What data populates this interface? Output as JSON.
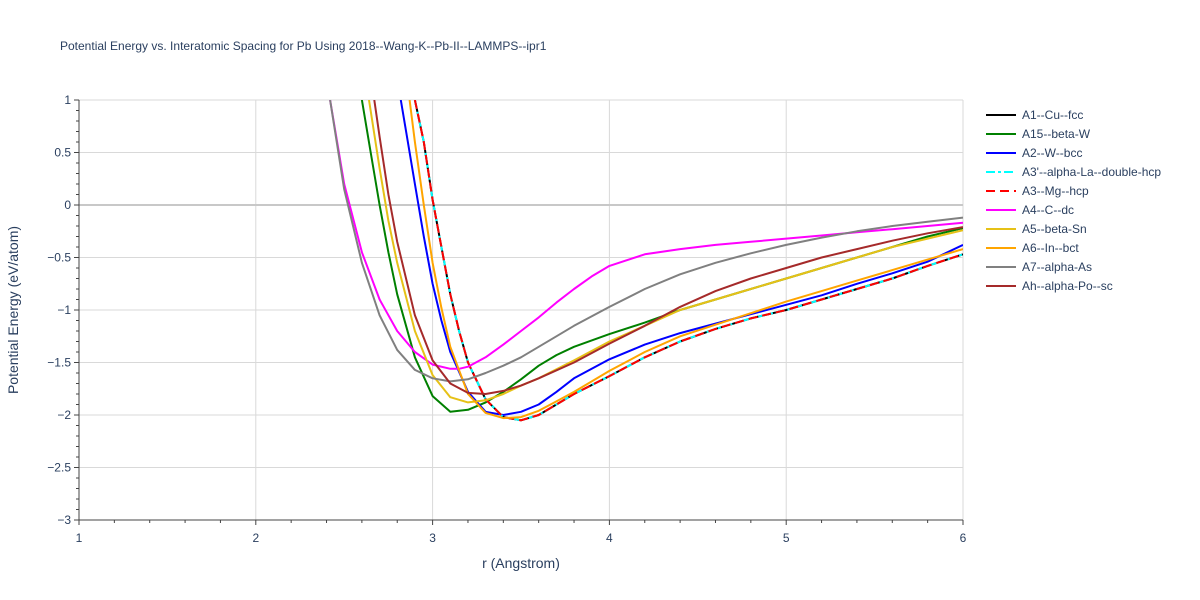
{
  "chart_data": {
    "type": "line",
    "title": "Potential Energy vs. Interatomic Spacing for Pb Using 2018--Wang-K--Pb-II--LAMMPS--ipr1",
    "xlabel": "r (Angstrom)",
    "ylabel": "Potential Energy (eV/atom)",
    "xlim": [
      1,
      6
    ],
    "ylim": [
      -3,
      1
    ],
    "x_ticks": [
      1,
      2,
      3,
      4,
      5,
      6
    ],
    "y_ticks": [
      1,
      0.5,
      0,
      -0.5,
      -1,
      -1.5,
      -2,
      -2.5,
      -3
    ],
    "x_tick_labels": [
      "1",
      "2",
      "3",
      "4",
      "5",
      "6"
    ],
    "y_tick_labels": [
      "1",
      "0.5",
      "0",
      "−0.5",
      "−1",
      "−1.5",
      "−2",
      "−2.5",
      "−3"
    ],
    "grid": true,
    "legend_position": "right",
    "series": [
      {
        "name": "A1--Cu--fcc",
        "color": "#000000",
        "dash": "solid",
        "x": [
          2.9,
          2.95,
          3.0,
          3.05,
          3.1,
          3.15,
          3.2,
          3.3,
          3.4,
          3.5,
          3.6,
          3.7,
          3.8,
          4.0,
          4.2,
          4.4,
          4.6,
          4.8,
          5.0,
          5.2,
          5.4,
          5.6,
          5.8,
          6.0
        ],
        "y": [
          1.0,
          0.6,
          0.05,
          -0.4,
          -0.85,
          -1.2,
          -1.5,
          -1.85,
          -2.02,
          -2.05,
          -2.0,
          -1.9,
          -1.8,
          -1.63,
          -1.45,
          -1.3,
          -1.18,
          -1.08,
          -1.0,
          -0.9,
          -0.8,
          -0.7,
          -0.58,
          -0.47
        ]
      },
      {
        "name": "A15--beta-W",
        "color": "#008000",
        "dash": "solid",
        "x": [
          2.6,
          2.65,
          2.7,
          2.75,
          2.8,
          2.9,
          3.0,
          3.1,
          3.2,
          3.3,
          3.4,
          3.5,
          3.6,
          3.7,
          3.8,
          4.0,
          4.2,
          4.4,
          4.6,
          4.8,
          5.0,
          5.2,
          5.4,
          5.6,
          5.8,
          6.0
        ],
        "y": [
          1.0,
          0.5,
          0.0,
          -0.45,
          -0.85,
          -1.45,
          -1.82,
          -1.97,
          -1.95,
          -1.88,
          -1.78,
          -1.66,
          -1.53,
          -1.43,
          -1.35,
          -1.23,
          -1.12,
          -1.0,
          -0.9,
          -0.8,
          -0.7,
          -0.6,
          -0.5,
          -0.4,
          -0.3,
          -0.22
        ]
      },
      {
        "name": "A2--W--bcc",
        "color": "#0000ff",
        "dash": "solid",
        "x": [
          2.82,
          2.85,
          2.9,
          2.95,
          3.0,
          3.05,
          3.1,
          3.2,
          3.3,
          3.4,
          3.5,
          3.6,
          3.7,
          3.8,
          4.0,
          4.2,
          4.4,
          4.6,
          4.8,
          5.0,
          5.2,
          5.4,
          5.6,
          5.8,
          6.0
        ],
        "y": [
          1.0,
          0.7,
          0.2,
          -0.3,
          -0.75,
          -1.1,
          -1.4,
          -1.78,
          -1.97,
          -2.0,
          -1.97,
          -1.9,
          -1.78,
          -1.65,
          -1.47,
          -1.33,
          -1.22,
          -1.13,
          -1.04,
          -0.95,
          -0.86,
          -0.75,
          -0.65,
          -0.54,
          -0.38
        ]
      },
      {
        "name": "A3'--alpha-La--double-hcp",
        "color": "#00ffff",
        "dash": "dashdot",
        "x": [
          2.9,
          2.95,
          3.0,
          3.05,
          3.1,
          3.15,
          3.2,
          3.3,
          3.4,
          3.5,
          3.6,
          3.7,
          3.8,
          4.0,
          4.2,
          4.4,
          4.6,
          4.8,
          5.0,
          5.2,
          5.4,
          5.6,
          5.8,
          6.0
        ],
        "y": [
          1.0,
          0.6,
          0.05,
          -0.4,
          -0.85,
          -1.2,
          -1.5,
          -1.85,
          -2.02,
          -2.05,
          -2.0,
          -1.9,
          -1.8,
          -1.63,
          -1.45,
          -1.3,
          -1.18,
          -1.08,
          -1.0,
          -0.9,
          -0.8,
          -0.7,
          -0.58,
          -0.47
        ]
      },
      {
        "name": "A3--Mg--hcp",
        "color": "#ff0000",
        "dash": "dash",
        "x": [
          2.9,
          2.95,
          3.0,
          3.05,
          3.1,
          3.15,
          3.2,
          3.3,
          3.4,
          3.5,
          3.6,
          3.7,
          3.8,
          4.0,
          4.2,
          4.4,
          4.6,
          4.8,
          5.0,
          5.2,
          5.4,
          5.6,
          5.8,
          6.0
        ],
        "y": [
          1.0,
          0.6,
          0.05,
          -0.4,
          -0.85,
          -1.2,
          -1.5,
          -1.85,
          -2.02,
          -2.05,
          -2.0,
          -1.9,
          -1.8,
          -1.63,
          -1.45,
          -1.3,
          -1.18,
          -1.08,
          -1.0,
          -0.9,
          -0.8,
          -0.7,
          -0.58,
          -0.47
        ]
      },
      {
        "name": "A4--C--dc",
        "color": "#ff00ff",
        "dash": "solid",
        "x": [
          2.42,
          2.5,
          2.6,
          2.7,
          2.8,
          2.9,
          3.0,
          3.1,
          3.15,
          3.2,
          3.3,
          3.4,
          3.5,
          3.6,
          3.7,
          3.8,
          3.9,
          4.0,
          4.2,
          4.4,
          4.6,
          4.8,
          5.0,
          5.2,
          5.4,
          5.6,
          5.8,
          6.0
        ],
        "y": [
          1.0,
          0.2,
          -0.45,
          -0.9,
          -1.2,
          -1.4,
          -1.52,
          -1.56,
          -1.56,
          -1.54,
          -1.45,
          -1.33,
          -1.2,
          -1.07,
          -0.93,
          -0.8,
          -0.68,
          -0.58,
          -0.47,
          -0.42,
          -0.38,
          -0.35,
          -0.32,
          -0.29,
          -0.26,
          -0.23,
          -0.2,
          -0.17
        ]
      },
      {
        "name": "A5--beta-Sn",
        "color": "#e6c117",
        "dash": "solid",
        "x": [
          2.64,
          2.7,
          2.75,
          2.8,
          2.9,
          3.0,
          3.1,
          3.2,
          3.3,
          3.4,
          3.5,
          3.6,
          3.8,
          4.0,
          4.2,
          4.4,
          4.6,
          4.8,
          5.0,
          5.2,
          5.4,
          5.6,
          5.8,
          6.0
        ],
        "y": [
          1.0,
          0.35,
          -0.15,
          -0.55,
          -1.2,
          -1.62,
          -1.83,
          -1.88,
          -1.86,
          -1.8,
          -1.72,
          -1.65,
          -1.48,
          -1.3,
          -1.15,
          -1.0,
          -0.9,
          -0.8,
          -0.7,
          -0.6,
          -0.5,
          -0.4,
          -0.32,
          -0.24
        ]
      },
      {
        "name": "A6--In--bct",
        "color": "#ffa500",
        "dash": "solid",
        "x": [
          2.87,
          2.9,
          2.95,
          3.0,
          3.05,
          3.1,
          3.2,
          3.3,
          3.4,
          3.5,
          3.6,
          3.7,
          3.8,
          4.0,
          4.2,
          4.4,
          4.6,
          4.8,
          5.0,
          5.2,
          5.4,
          5.6,
          5.8,
          6.0
        ],
        "y": [
          1.0,
          0.6,
          0.0,
          -0.55,
          -0.98,
          -1.35,
          -1.8,
          -1.98,
          -2.03,
          -2.02,
          -1.96,
          -1.87,
          -1.78,
          -1.58,
          -1.4,
          -1.25,
          -1.14,
          -1.03,
          -0.92,
          -0.82,
          -0.72,
          -0.62,
          -0.52,
          -0.42
        ]
      },
      {
        "name": "A7--alpha-As",
        "color": "#808080",
        "dash": "solid",
        "x": [
          2.42,
          2.5,
          2.6,
          2.7,
          2.8,
          2.9,
          3.0,
          3.1,
          3.2,
          3.3,
          3.4,
          3.5,
          3.6,
          3.7,
          3.8,
          4.0,
          4.2,
          4.4,
          4.6,
          4.8,
          5.0,
          5.2,
          5.4,
          5.6,
          5.8,
          6.0
        ],
        "y": [
          1.0,
          0.15,
          -0.55,
          -1.05,
          -1.38,
          -1.57,
          -1.65,
          -1.68,
          -1.66,
          -1.6,
          -1.53,
          -1.45,
          -1.35,
          -1.25,
          -1.15,
          -0.97,
          -0.8,
          -0.66,
          -0.55,
          -0.46,
          -0.38,
          -0.31,
          -0.25,
          -0.2,
          -0.16,
          -0.12
        ]
      },
      {
        "name": "Ah--alpha-Po--sc",
        "color": "#a52a2a",
        "dash": "solid",
        "x": [
          2.67,
          2.7,
          2.75,
          2.8,
          2.9,
          3.0,
          3.1,
          3.2,
          3.3,
          3.4,
          3.5,
          3.6,
          3.8,
          4.0,
          4.2,
          4.4,
          4.6,
          4.8,
          5.0,
          5.2,
          5.4,
          5.6,
          5.8,
          6.0
        ],
        "y": [
          1.0,
          0.65,
          0.1,
          -0.35,
          -1.05,
          -1.48,
          -1.7,
          -1.79,
          -1.8,
          -1.77,
          -1.72,
          -1.65,
          -1.5,
          -1.32,
          -1.15,
          -0.97,
          -0.82,
          -0.7,
          -0.6,
          -0.5,
          -0.42,
          -0.34,
          -0.27,
          -0.21
        ]
      }
    ]
  }
}
